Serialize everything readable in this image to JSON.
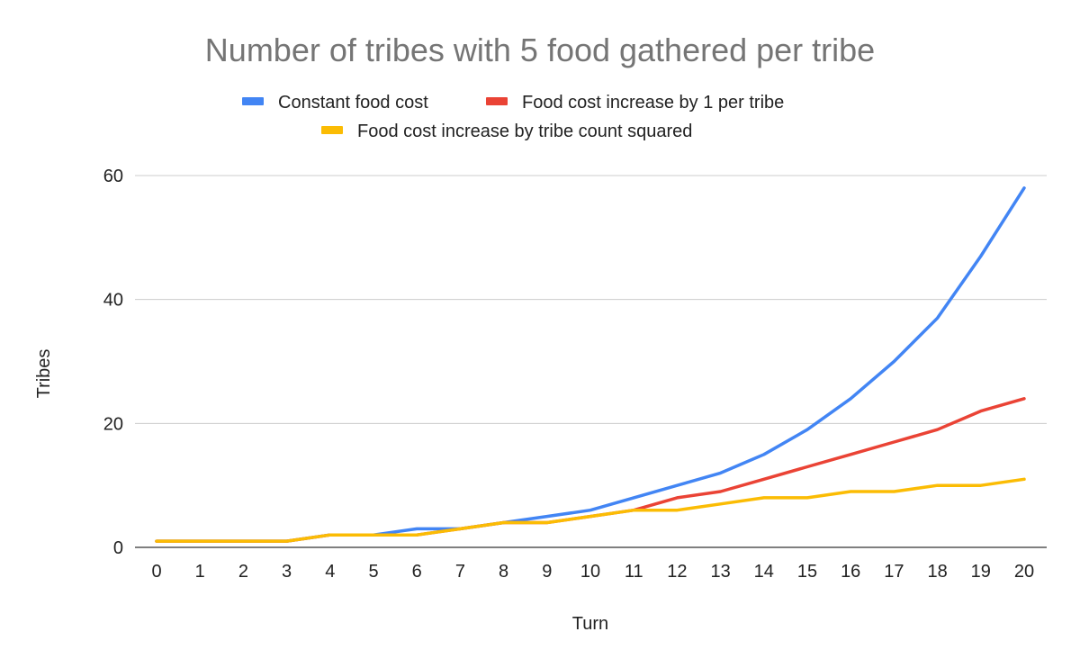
{
  "chart_data": {
    "type": "line",
    "title": "Number of tribes with 5 food gathered per tribe",
    "xlabel": "Turn",
    "ylabel": "Tribes",
    "x": [
      0,
      1,
      2,
      3,
      4,
      5,
      6,
      7,
      8,
      9,
      10,
      11,
      12,
      13,
      14,
      15,
      16,
      17,
      18,
      19,
      20
    ],
    "x_ticks": [
      "0",
      "1",
      "2",
      "3",
      "4",
      "5",
      "6",
      "7",
      "8",
      "9",
      "10",
      "11",
      "12",
      "13",
      "14",
      "15",
      "16",
      "17",
      "18",
      "19",
      "20"
    ],
    "ylim": [
      0,
      60
    ],
    "y_ticks": [
      "0",
      "20",
      "40",
      "60"
    ],
    "grid": true,
    "legend_position": "top",
    "series": [
      {
        "name": "Constant food cost",
        "color": "#4285f4",
        "values": [
          1,
          1,
          1,
          1,
          2,
          2,
          3,
          3,
          4,
          5,
          6,
          8,
          10,
          12,
          15,
          19,
          24,
          30,
          37,
          47,
          58
        ]
      },
      {
        "name": "Food cost increase by 1 per tribe",
        "color": "#ea4335",
        "values": [
          1,
          1,
          1,
          1,
          2,
          2,
          2,
          3,
          4,
          4,
          5,
          6,
          8,
          9,
          11,
          13,
          15,
          17,
          19,
          22,
          24
        ]
      },
      {
        "name": "Food cost increase by tribe count squared",
        "color": "#fbbc04",
        "values": [
          1,
          1,
          1,
          1,
          2,
          2,
          2,
          3,
          4,
          4,
          5,
          6,
          6,
          7,
          8,
          8,
          9,
          9,
          10,
          10,
          11
        ]
      }
    ]
  }
}
